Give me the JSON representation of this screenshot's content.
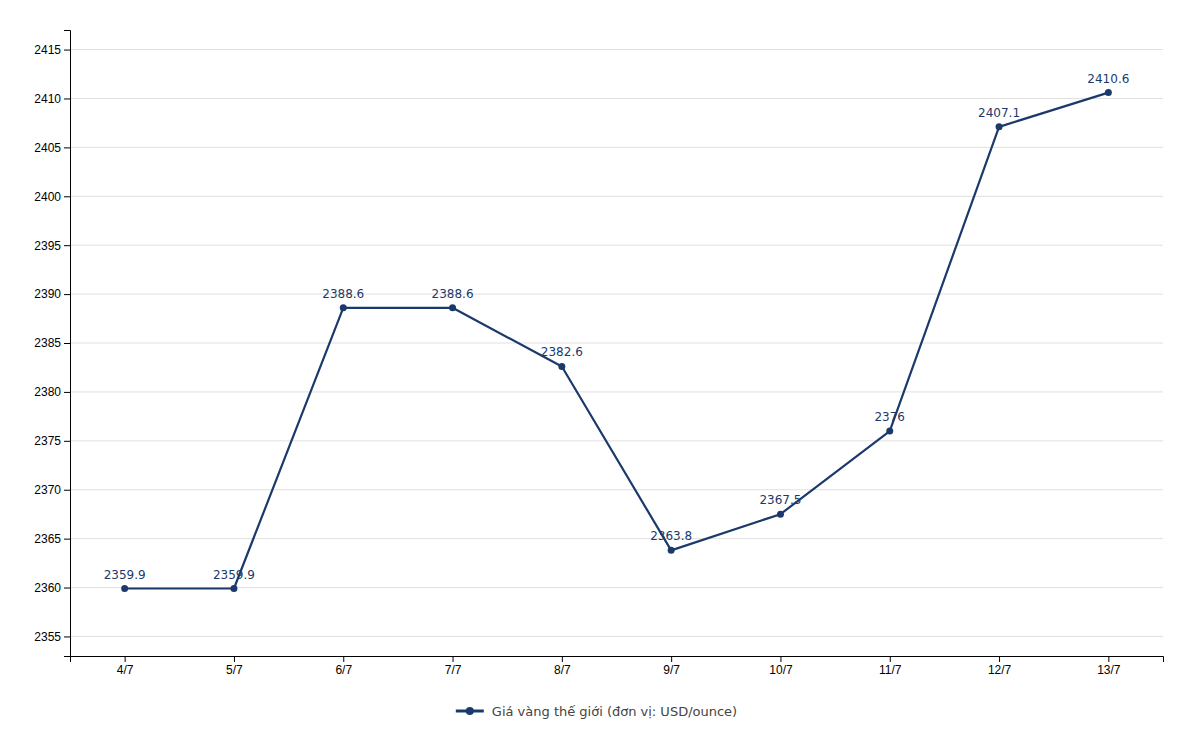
{
  "chart_data": {
    "type": "line",
    "categories": [
      "4/7",
      "5/7",
      "6/7",
      "7/7",
      "8/7",
      "9/7",
      "10/7",
      "11/7",
      "12/7",
      "13/7"
    ],
    "series": [
      {
        "name": "Giá vàng thế giới (đơn vị: USD/ounce)",
        "color": "#1b3a6b",
        "marker": "circle",
        "values": [
          2359.9,
          2359.9,
          2388.6,
          2388.6,
          2382.6,
          2363.8,
          2367.5,
          2376.0,
          2407.1,
          2410.6
        ]
      }
    ],
    "ylim": [
      2353,
      2417
    ],
    "yticks": [
      2355,
      2360,
      2365,
      2370,
      2375,
      2380,
      2385,
      2390,
      2395,
      2400,
      2405,
      2410,
      2415
    ],
    "grid": true,
    "legend": "bottom",
    "data_labels": true
  }
}
